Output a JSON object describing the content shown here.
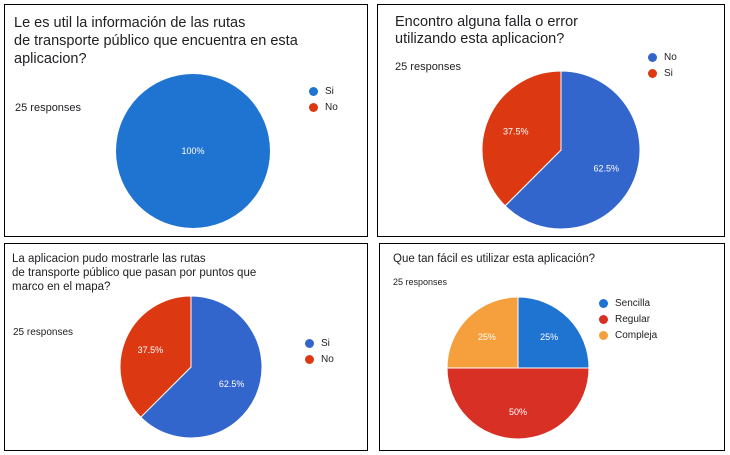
{
  "colors": {
    "blue": "#3366cc",
    "red": "#dc3912",
    "orange": "#ff9900",
    "blue_light": "#1f74d1",
    "red_light": "#d93025",
    "orange_light": "#f6a03d"
  },
  "chart_data": [
    {
      "type": "pie",
      "title": "Le es util la información de las rutas\nde transporte público que encuentra en esta aplicacion?",
      "responses": "25 responses",
      "categories": [
        "Si",
        "No"
      ],
      "values": [
        100,
        0
      ],
      "slice_labels": [
        "100%",
        ""
      ],
      "colors": [
        "#1f74d1",
        "#dc3912"
      ],
      "legend": "right"
    },
    {
      "type": "pie",
      "title": "Encontro alguna falla o error\nutilizando esta aplicacion?",
      "responses": "25 responses",
      "categories": [
        "No",
        "Si"
      ],
      "values": [
        62.5,
        37.5
      ],
      "slice_labels": [
        "62.5%",
        "37.5%"
      ],
      "colors": [
        "#3366cc",
        "#dc3912"
      ],
      "legend": "right"
    },
    {
      "type": "pie",
      "title": "La aplicacion pudo mostrarle las rutas\nde transporte público que pasan por puntos que\nmarco en el mapa?",
      "responses": "25 responses",
      "categories": [
        "Si",
        "No"
      ],
      "values": [
        62.5,
        37.5
      ],
      "slice_labels": [
        "62.5%",
        "37.5%"
      ],
      "colors": [
        "#3366cc",
        "#dc3912"
      ],
      "legend": "right"
    },
    {
      "type": "pie",
      "title": "Que tan fácil es utilizar esta aplicación?",
      "responses": "25 responses",
      "categories": [
        "Sencilla",
        "Regular",
        "Compleja"
      ],
      "values": [
        25,
        50,
        25
      ],
      "slice_labels": [
        "25%",
        "50%",
        "25%"
      ],
      "colors": [
        "#1f74d1",
        "#d93025",
        "#f6a03d"
      ],
      "legend": "right"
    }
  ]
}
